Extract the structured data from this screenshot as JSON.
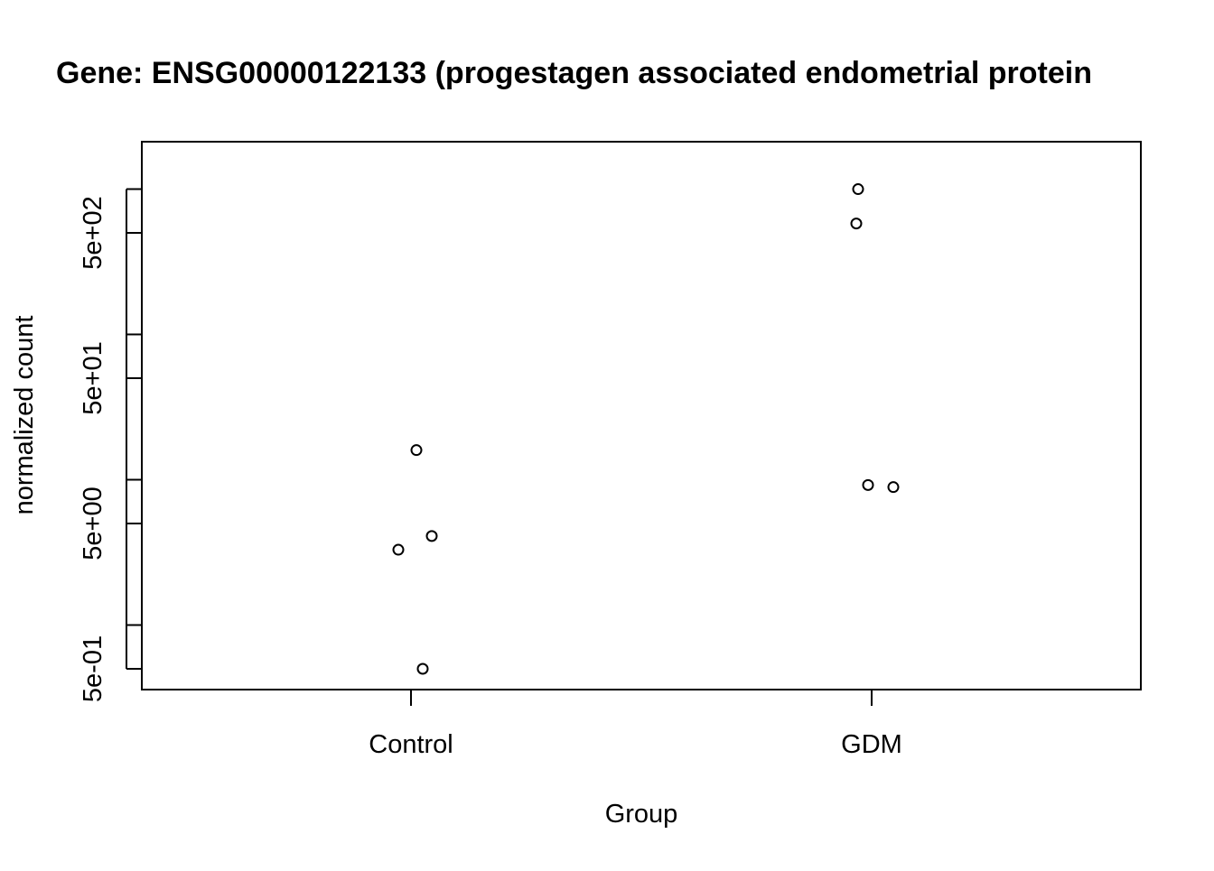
{
  "chart_data": {
    "type": "scatter",
    "title": "Gene: ENSG00000122133 (progestagen associated endometrial protein",
    "xlabel": "Group",
    "ylabel": "normalized count",
    "categories": [
      "Control",
      "GDM"
    ],
    "y_scale": "log10",
    "ylim": [
      0.42,
      1200
    ],
    "y_major_ticks": [
      0.5,
      5,
      50,
      500
    ],
    "y_minor_ticks": [
      1,
      10,
      100,
      1000
    ],
    "y_tick_labels": [
      "5e-01",
      "5e+00",
      "5e+01",
      "5e+02"
    ],
    "series": [
      {
        "points": [
          {
            "x": "Control",
            "y": 16
          },
          {
            "x": "Control",
            "y": 4.1
          },
          {
            "x": "Control",
            "y": 3.3
          },
          {
            "x": "Control",
            "y": 0.5
          },
          {
            "x": "GDM",
            "y": 1000
          },
          {
            "x": "GDM",
            "y": 580
          },
          {
            "x": "GDM",
            "y": 9.2
          },
          {
            "x": "GDM",
            "y": 8.9
          }
        ]
      }
    ],
    "marker": "open-circle",
    "colors": {
      "points": "#000000",
      "axes": "#000000",
      "background": "#ffffff"
    },
    "grid": false,
    "legend": "none"
  }
}
